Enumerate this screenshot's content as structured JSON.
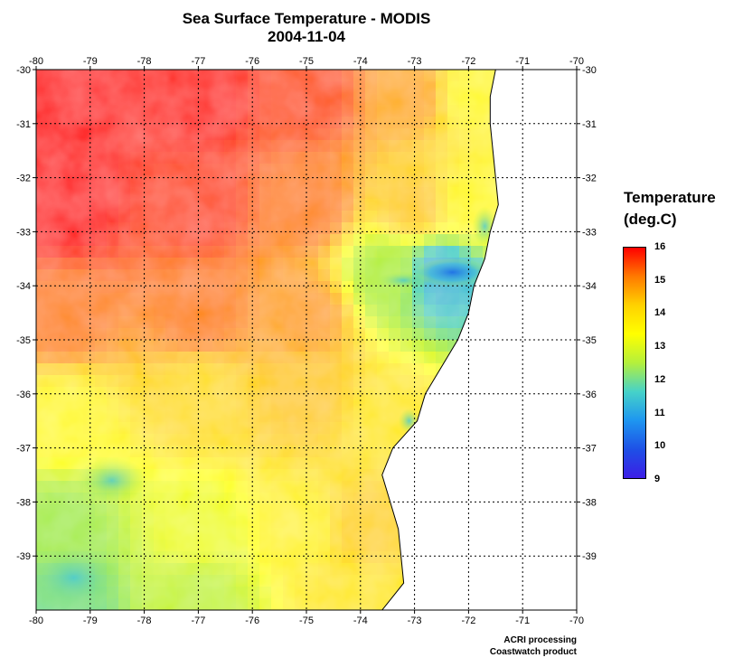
{
  "title": "Sea Surface Temperature - MODIS",
  "date": "2004-11-04",
  "legend": {
    "title_line1": "Temperature",
    "title_line2": "(deg.C)",
    "min": 9,
    "max": 16,
    "ticks": [
      "16",
      "15",
      "14",
      "13",
      "12",
      "11",
      "10",
      "9"
    ],
    "colors": [
      "#ff0000",
      "#ff7a00",
      "#ffd200",
      "#ffff00",
      "#b4f03c",
      "#46d2c8",
      "#1e96f0",
      "#1e50e6",
      "#3c1ee6"
    ]
  },
  "credits": {
    "line1": "ACRI processing",
    "line2": "Coastwatch product"
  },
  "chart_data": {
    "type": "heatmap",
    "title": "Sea Surface Temperature - MODIS",
    "subtitle": "2004-11-04",
    "xlabel": "",
    "ylabel": "",
    "xlim": [
      -80,
      -70
    ],
    "ylim": [
      -40,
      -30
    ],
    "x_ticks": [
      "-80",
      "-79",
      "-78",
      "-77",
      "-76",
      "-75",
      "-74",
      "-73",
      "-72",
      "-71",
      "-70"
    ],
    "y_ticks": [
      "-30",
      "-31",
      "-32",
      "-33",
      "-34",
      "-35",
      "-36",
      "-37",
      "-38",
      "-39"
    ],
    "grid": true,
    "colorbar": {
      "label": "Temperature (deg.C)",
      "range": [
        9,
        16
      ]
    },
    "coastline_lon_by_lat": [
      {
        "lat": -30.0,
        "lon": -71.5
      },
      {
        "lat": -30.5,
        "lon": -71.6
      },
      {
        "lat": -31.0,
        "lon": -71.6
      },
      {
        "lat": -31.5,
        "lon": -71.55
      },
      {
        "lat": -32.0,
        "lon": -71.5
      },
      {
        "lat": -32.5,
        "lon": -71.45
      },
      {
        "lat": -33.0,
        "lon": -71.6
      },
      {
        "lat": -33.5,
        "lon": -71.7
      },
      {
        "lat": -34.0,
        "lon": -71.9
      },
      {
        "lat": -34.5,
        "lon": -72.0
      },
      {
        "lat": -35.0,
        "lon": -72.2
      },
      {
        "lat": -35.5,
        "lon": -72.5
      },
      {
        "lat": -36.0,
        "lon": -72.8
      },
      {
        "lat": -36.5,
        "lon": -72.95
      },
      {
        "lat": -37.0,
        "lon": -73.4
      },
      {
        "lat": -37.5,
        "lon": -73.6
      },
      {
        "lat": -38.0,
        "lon": -73.45
      },
      {
        "lat": -38.5,
        "lon": -73.3
      },
      {
        "lat": -39.0,
        "lon": -73.25
      },
      {
        "lat": -39.5,
        "lon": -73.2
      },
      {
        "lat": -40.0,
        "lon": -73.6
      }
    ],
    "temperature_samples": [
      {
        "lon": -79.5,
        "lat": -30.5,
        "value": 15.9
      },
      {
        "lon": -77.0,
        "lat": -30.5,
        "value": 15.8
      },
      {
        "lon": -75.0,
        "lat": -30.5,
        "value": 15.4
      },
      {
        "lon": -73.0,
        "lat": -30.5,
        "value": 14.6
      },
      {
        "lon": -72.0,
        "lat": -30.5,
        "value": 13.5
      },
      {
        "lon": -79.5,
        "lat": -32.5,
        "value": 15.9
      },
      {
        "lon": -77.0,
        "lat": -32.5,
        "value": 15.5
      },
      {
        "lon": -75.0,
        "lat": -32.5,
        "value": 15.0
      },
      {
        "lon": -73.0,
        "lat": -32.5,
        "value": 14.3
      },
      {
        "lon": -72.0,
        "lat": -32.5,
        "value": 13.5
      },
      {
        "lon": -79.5,
        "lat": -34.5,
        "value": 15.0
      },
      {
        "lon": -77.0,
        "lat": -34.5,
        "value": 15.0
      },
      {
        "lon": -75.0,
        "lat": -34.5,
        "value": 14.7
      },
      {
        "lon": -73.5,
        "lat": -33.8,
        "value": 12.5
      },
      {
        "lon": -72.5,
        "lat": -33.8,
        "value": 11.3
      },
      {
        "lon": -79.5,
        "lat": -36.5,
        "value": 13.5
      },
      {
        "lon": -77.0,
        "lat": -36.0,
        "value": 14.0
      },
      {
        "lon": -75.0,
        "lat": -36.0,
        "value": 14.3
      },
      {
        "lon": -73.5,
        "lat": -36.5,
        "value": 13.8
      },
      {
        "lon": -79.5,
        "lat": -38.5,
        "value": 12.4
      },
      {
        "lon": -77.0,
        "lat": -38.5,
        "value": 13.2
      },
      {
        "lon": -75.0,
        "lat": -38.5,
        "value": 13.6
      },
      {
        "lon": -74.0,
        "lat": -38.5,
        "value": 14.2
      },
      {
        "lon": -79.5,
        "lat": -39.8,
        "value": 12.0
      },
      {
        "lon": -77.0,
        "lat": -39.8,
        "value": 12.7
      },
      {
        "lon": -74.0,
        "lat": -39.8,
        "value": 13.8
      }
    ]
  }
}
